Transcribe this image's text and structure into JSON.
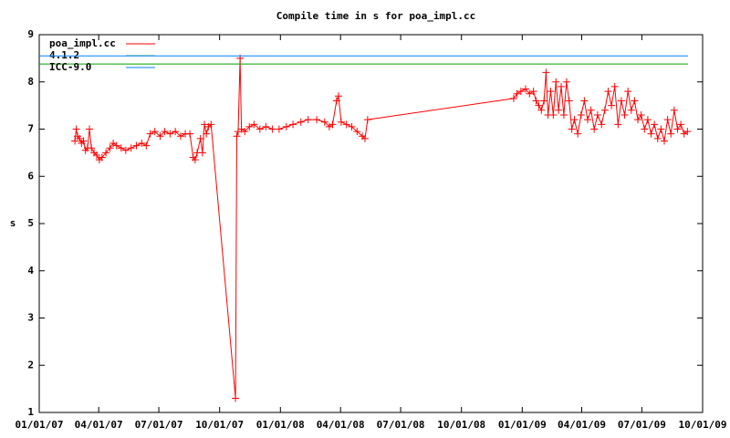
{
  "chart_data": {
    "type": "line",
    "title": "Compile time in s for poa_impl.cc",
    "ylabel": "s",
    "xlim": [
      "2007-01-01",
      "2009-10-01"
    ],
    "xticks": [
      {
        "value": "2007-01-01",
        "label": "01/01/07"
      },
      {
        "value": "2007-04-01",
        "label": "04/01/07"
      },
      {
        "value": "2007-07-01",
        "label": "07/01/07"
      },
      {
        "value": "2007-10-01",
        "label": "10/01/07"
      },
      {
        "value": "2008-01-01",
        "label": "01/01/08"
      },
      {
        "value": "2008-04-01",
        "label": "04/01/08"
      },
      {
        "value": "2008-07-01",
        "label": "07/01/08"
      },
      {
        "value": "2008-10-01",
        "label": "10/01/08"
      },
      {
        "value": "2009-01-01",
        "label": "01/01/09"
      },
      {
        "value": "2009-04-01",
        "label": "04/01/09"
      },
      {
        "value": "2009-07-01",
        "label": "07/01/09"
      },
      {
        "value": "2009-10-01",
        "label": "10/01/09"
      }
    ],
    "ylim": [
      1,
      9
    ],
    "yticks": [
      1,
      2,
      3,
      4,
      5,
      6,
      7,
      8,
      9
    ],
    "legend": "top-left",
    "x": [
      "2007-02-24",
      "2007-02-26",
      "2007-02-28",
      "2007-03-03",
      "2007-03-06",
      "2007-03-09",
      "2007-03-12",
      "2007-03-15",
      "2007-03-18",
      "2007-03-21",
      "2007-03-25",
      "2007-03-29",
      "2007-04-02",
      "2007-04-06",
      "2007-04-12",
      "2007-04-18",
      "2007-04-23",
      "2007-04-28",
      "2007-05-05",
      "2007-05-12",
      "2007-05-20",
      "2007-05-28",
      "2007-06-05",
      "2007-06-12",
      "2007-06-18",
      "2007-06-25",
      "2007-07-03",
      "2007-07-10",
      "2007-07-18",
      "2007-07-26",
      "2007-08-03",
      "2007-08-10",
      "2007-08-17",
      "2007-08-22",
      "2007-08-25",
      "2007-08-28",
      "2007-09-02",
      "2007-09-05",
      "2007-09-08",
      "2007-09-11",
      "2007-09-14",
      "2007-09-18",
      "2007-10-25",
      "2007-10-27",
      "2007-10-29",
      "2007-11-01",
      "2007-11-03",
      "2007-11-08",
      "2007-11-15",
      "2007-11-22",
      "2007-12-01",
      "2007-12-10",
      "2007-12-20",
      "2007-12-30",
      "2008-01-10",
      "2008-01-20",
      "2008-02-01",
      "2008-02-12",
      "2008-02-25",
      "2008-03-08",
      "2008-03-15",
      "2008-03-20",
      "2008-03-26",
      "2008-03-29",
      "2008-04-02",
      "2008-04-10",
      "2008-04-18",
      "2008-04-26",
      "2008-05-04",
      "2008-05-08",
      "2008-05-12",
      "2008-12-19",
      "2008-12-24",
      "2008-12-30",
      "2009-01-06",
      "2009-01-12",
      "2009-01-18",
      "2009-01-22",
      "2009-01-26",
      "2009-01-30",
      "2009-02-03",
      "2009-02-06",
      "2009-02-09",
      "2009-02-13",
      "2009-02-17",
      "2009-02-21",
      "2009-02-25",
      "2009-03-01",
      "2009-03-05",
      "2009-03-09",
      "2009-03-13",
      "2009-03-17",
      "2009-03-21",
      "2009-03-26",
      "2009-03-31",
      "2009-04-05",
      "2009-04-10",
      "2009-04-15",
      "2009-04-20",
      "2009-04-25",
      "2009-05-01",
      "2009-05-06",
      "2009-05-11",
      "2009-05-16",
      "2009-05-21",
      "2009-05-26",
      "2009-05-31",
      "2009-06-05",
      "2009-06-10",
      "2009-06-15",
      "2009-06-20",
      "2009-06-25",
      "2009-06-30",
      "2009-07-05",
      "2009-07-10",
      "2009-07-15",
      "2009-07-20",
      "2009-07-25",
      "2009-07-30",
      "2009-08-04",
      "2009-08-09",
      "2009-08-14",
      "2009-08-19",
      "2009-08-24",
      "2009-08-29",
      "2009-09-03",
      "2009-09-08"
    ],
    "series": [
      {
        "name": "poa_impl.cc",
        "color": "#ff0000",
        "values": [
          6.75,
          7.0,
          6.85,
          6.8,
          6.7,
          6.75,
          6.55,
          6.6,
          7.0,
          6.6,
          6.5,
          6.45,
          6.35,
          6.4,
          6.5,
          6.6,
          6.7,
          6.65,
          6.6,
          6.55,
          6.6,
          6.65,
          6.7,
          6.65,
          6.9,
          6.95,
          6.85,
          6.95,
          6.9,
          6.95,
          6.85,
          6.9,
          6.9,
          6.4,
          6.35,
          6.5,
          6.8,
          6.5,
          7.1,
          6.9,
          7.05,
          7.1,
          1.3,
          6.85,
          6.95,
          8.5,
          7.0,
          6.95,
          7.05,
          7.1,
          7.0,
          7.05,
          7.0,
          7.0,
          7.05,
          7.1,
          7.15,
          7.2,
          7.2,
          7.15,
          7.05,
          7.1,
          7.6,
          7.7,
          7.15,
          7.1,
          7.05,
          6.95,
          6.85,
          6.8,
          7.2,
          7.65,
          7.75,
          7.8,
          7.85,
          7.75,
          7.8,
          7.6,
          7.5,
          7.4,
          7.6,
          8.2,
          7.3,
          7.8,
          7.3,
          8.0,
          7.4,
          7.9,
          7.3,
          8.0,
          7.6,
          7.0,
          7.2,
          6.9,
          7.3,
          7.6,
          7.2,
          7.4,
          7.0,
          7.3,
          7.1,
          7.4,
          7.8,
          7.5,
          7.9,
          7.1,
          7.6,
          7.3,
          7.8,
          7.4,
          7.6,
          7.2,
          7.3,
          7.0,
          7.2,
          6.9,
          7.1,
          6.8,
          7.0,
          6.75,
          7.2,
          6.9,
          7.4,
          7.0,
          7.1,
          6.9,
          6.95
        ]
      }
    ],
    "reference_lines": [
      {
        "name": "4.1.2",
        "color": "#00a000",
        "value": 8.38
      },
      {
        "name": "ICC-9.0",
        "color": "#0080ff",
        "value": 8.55
      }
    ]
  }
}
